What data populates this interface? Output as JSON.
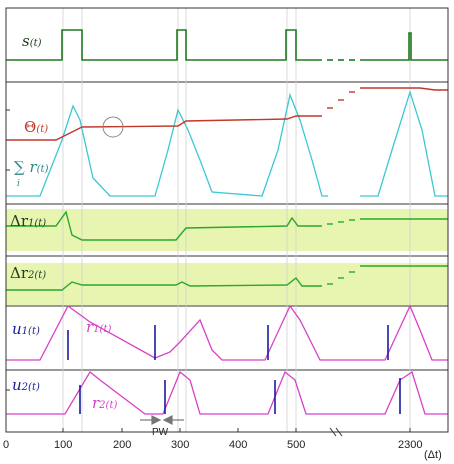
{
  "colors": {
    "signal": "#1e7a1e",
    "theta": "#c0392b",
    "sum": "#3cc8d2",
    "delta": "#2aa82a",
    "band": "#e8f5b0",
    "r": "#d840c8",
    "u": "#1a1aa0",
    "grid": "#cfcfcf",
    "frame": "#333333"
  },
  "labels": {
    "s": {
      "main": "s",
      "sub": "(t)"
    },
    "theta": {
      "main": "Θ",
      "sub": "(t)"
    },
    "sum": {
      "main": "∑ r",
      "sub": "(t)",
      "index": "i"
    },
    "dr1": {
      "main": "Δr",
      "idx": "1",
      "sub": "(t)"
    },
    "dr2": {
      "main": "Δr",
      "idx": "2",
      "sub": "(t)"
    },
    "u1": {
      "main": "u",
      "idx": "1",
      "sub": "(t)"
    },
    "r1": {
      "main": "r",
      "idx": "1",
      "sub": "(t)"
    },
    "u2": {
      "main": "u",
      "idx": "2",
      "sub": "(t)"
    },
    "r2": {
      "main": "r",
      "idx": "2",
      "sub": "(t)"
    }
  },
  "pw_label": "PW",
  "axis": {
    "ticks": [
      "0",
      "100",
      "200",
      "300",
      "400",
      "500",
      "2300"
    ],
    "unit": "(Δt)"
  }
}
